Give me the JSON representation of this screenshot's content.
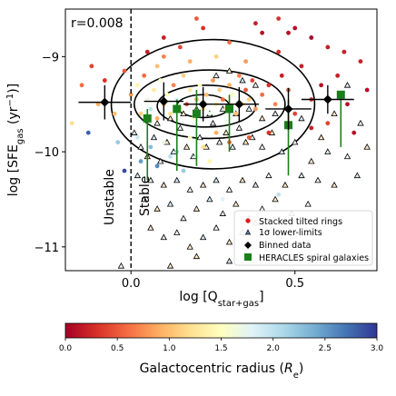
{
  "chart_data": [
    {
      "type": "scatter",
      "annotation": "r=0.008",
      "xlabel": "log [Q",
      "xlabel_sub": "star+gas",
      "xlabel_end": "]",
      "ylabel": "log [SFE",
      "ylabel_sub": "gas",
      "ylabel_mid": " (yr",
      "ylabel_sup": "−1",
      "ylabel_end": ")]",
      "xlim": [
        -0.2,
        0.75
      ],
      "ylim": [
        -11.25,
        -8.5
      ],
      "xticks": [
        {
          "value": 0.0,
          "label": "0.0"
        },
        {
          "value": 0.5,
          "label": "0.5"
        }
      ],
      "yticks": [
        {
          "value": -9,
          "label": "−9"
        },
        {
          "value": -10,
          "label": "−10"
        },
        {
          "value": -11,
          "label": "−11"
        }
      ],
      "divider_x": 0.0,
      "region_labels": {
        "left": "Unstable",
        "right": "Stable"
      },
      "legend": {
        "placement": "lower-right",
        "entries": [
          {
            "marker": "red-dot",
            "label": "Stacked tilted rings"
          },
          {
            "marker": "triangle",
            "label": "1σ lower-limits"
          },
          {
            "marker": "diamond",
            "label": "Binned data"
          },
          {
            "marker": "green-square",
            "label": "HERACLES spiral galaxies"
          }
        ]
      },
      "contours": [
        {
          "cx": 0.25,
          "cy": -9.5,
          "rx": 0.31,
          "ry": 0.68
        },
        {
          "cx": 0.24,
          "cy": -9.5,
          "rx": 0.23,
          "ry": 0.36
        },
        {
          "cx": 0.23,
          "cy": -9.52,
          "rx": 0.15,
          "ry": 0.22
        },
        {
          "cx": 0.22,
          "cy": -9.52,
          "rx": 0.08,
          "ry": 0.12
        }
      ],
      "binned": [
        {
          "x": -0.08,
          "y": -9.48,
          "xerr": 0.08,
          "yerr": 0.18
        },
        {
          "x": 0.1,
          "y": -9.47,
          "xerr": 0.06,
          "yerr": 0.2
        },
        {
          "x": 0.22,
          "y": -9.5,
          "xerr": 0.06,
          "yerr": 0.18
        },
        {
          "x": 0.33,
          "y": -9.5,
          "xerr": 0.06,
          "yerr": 0.18
        },
        {
          "x": 0.48,
          "y": -9.55,
          "xerr": 0.07,
          "yerr": 0.22
        },
        {
          "x": 0.6,
          "y": -9.45,
          "xerr": 0.08,
          "yerr": 0.15
        }
      ],
      "heracles": [
        {
          "x": 0.05,
          "y": -9.65,
          "ylow": -10.3,
          "yhigh": -9.55
        },
        {
          "x": 0.14,
          "y": -9.55,
          "ylow": -10.2,
          "yhigh": -9.45
        },
        {
          "x": 0.2,
          "y": -9.6,
          "ylow": -10.15,
          "yhigh": -9.35
        },
        {
          "x": 0.3,
          "y": -9.55,
          "ylow": -10.0,
          "yhigh": -9.4
        },
        {
          "x": 0.48,
          "y": -9.72,
          "ylow": -10.25,
          "yhigh": -9.45
        },
        {
          "x": 0.64,
          "y": -9.4,
          "ylow": -9.95,
          "yhigh": -9.4
        }
      ],
      "rings": [
        {
          "x": -0.15,
          "y": -9.3,
          "r": 0.6
        },
        {
          "x": -0.12,
          "y": -9.1,
          "r": 0.4
        },
        {
          "x": -0.1,
          "y": -9.5,
          "r": 0.9
        },
        {
          "x": -0.08,
          "y": -9.25,
          "r": 0.3
        },
        {
          "x": -0.05,
          "y": -9.6,
          "r": 1.0
        },
        {
          "x": -0.13,
          "y": -9.8,
          "r": 2.8
        },
        {
          "x": -0.02,
          "y": -9.15,
          "r": 0.5
        },
        {
          "x": -0.18,
          "y": -9.7,
          "r": 1.2
        },
        {
          "x": -0.04,
          "y": -9.9,
          "r": 2.2
        },
        {
          "x": 0.0,
          "y": -9.4,
          "r": 0.8
        },
        {
          "x": 0.02,
          "y": -9.3,
          "r": 1.4
        },
        {
          "x": 0.03,
          "y": -9.6,
          "r": 1.1
        },
        {
          "x": 0.04,
          "y": -9.2,
          "r": 0.6
        },
        {
          "x": 0.05,
          "y": -9.45,
          "r": 1.7
        },
        {
          "x": 0.06,
          "y": -9.55,
          "r": 2.0
        },
        {
          "x": 0.07,
          "y": -9.35,
          "r": 1.3
        },
        {
          "x": 0.08,
          "y": -9.65,
          "r": 0.9
        },
        {
          "x": 0.09,
          "y": -9.25,
          "r": 1.6
        },
        {
          "x": 0.1,
          "y": -9.5,
          "r": 1.0
        },
        {
          "x": 0.11,
          "y": -9.4,
          "r": 1.5
        },
        {
          "x": 0.12,
          "y": -9.6,
          "r": 1.2
        },
        {
          "x": 0.13,
          "y": -9.3,
          "r": 0.7
        },
        {
          "x": 0.14,
          "y": -9.45,
          "r": 1.8
        },
        {
          "x": 0.15,
          "y": -9.55,
          "r": 1.4
        },
        {
          "x": 0.16,
          "y": -9.2,
          "r": 1.1
        },
        {
          "x": 0.17,
          "y": -9.5,
          "r": 0.5
        },
        {
          "x": 0.18,
          "y": -9.35,
          "r": 1.3
        },
        {
          "x": 0.19,
          "y": -9.65,
          "r": 1.6
        },
        {
          "x": 0.2,
          "y": -9.45,
          "r": 0.9
        },
        {
          "x": 0.21,
          "y": -9.3,
          "r": 1.5
        },
        {
          "x": 0.22,
          "y": -9.55,
          "r": 1.2
        },
        {
          "x": 0.23,
          "y": -9.4,
          "r": 1.0
        },
        {
          "x": 0.24,
          "y": -9.6,
          "r": 1.7
        },
        {
          "x": 0.25,
          "y": -9.25,
          "r": 0.8
        },
        {
          "x": 0.26,
          "y": -9.5,
          "r": 1.4
        },
        {
          "x": 0.27,
          "y": -9.35,
          "r": 1.1
        },
        {
          "x": 0.28,
          "y": -9.45,
          "r": 0.6
        },
        {
          "x": 0.29,
          "y": -9.55,
          "r": 1.3
        },
        {
          "x": 0.3,
          "y": -9.3,
          "r": 0.9
        },
        {
          "x": 0.31,
          "y": -9.4,
          "r": 1.5
        },
        {
          "x": 0.32,
          "y": -9.6,
          "r": 1.0
        },
        {
          "x": 0.33,
          "y": -9.2,
          "r": 0.7
        },
        {
          "x": 0.34,
          "y": -9.5,
          "r": 1.2
        },
        {
          "x": 0.35,
          "y": -9.35,
          "r": 0.5
        },
        {
          "x": 0.36,
          "y": -9.45,
          "r": 1.1
        },
        {
          "x": 0.37,
          "y": -9.25,
          "r": 0.4
        },
        {
          "x": 0.38,
          "y": -9.55,
          "r": 0.8
        },
        {
          "x": 0.4,
          "y": -9.4,
          "r": 0.6
        },
        {
          "x": 0.42,
          "y": -9.3,
          "r": 0.3
        },
        {
          "x": 0.44,
          "y": -9.5,
          "r": 0.7
        },
        {
          "x": 0.46,
          "y": -9.2,
          "r": 0.2
        },
        {
          "x": 0.48,
          "y": -9.35,
          "r": 0.5
        },
        {
          "x": 0.5,
          "y": -9.6,
          "r": 0.4
        },
        {
          "x": 0.52,
          "y": -9.1,
          "r": 0.2
        },
        {
          "x": 0.55,
          "y": -9.45,
          "r": 0.3
        },
        {
          "x": 0.58,
          "y": -9.3,
          "r": 0.1
        },
        {
          "x": 0.6,
          "y": -9.7,
          "r": 0.4
        },
        {
          "x": 0.63,
          "y": -9.2,
          "r": 0.2
        },
        {
          "x": 0.66,
          "y": -9.5,
          "r": 0.1
        },
        {
          "x": 0.7,
          "y": -9.05,
          "r": 0.2
        },
        {
          "x": 0.72,
          "y": -9.35,
          "r": 0.1
        },
        {
          "x": 0.5,
          "y": -8.7,
          "r": 0.1
        },
        {
          "x": 0.55,
          "y": -8.8,
          "r": 0.0
        },
        {
          "x": 0.6,
          "y": -8.9,
          "r": 0.2
        },
        {
          "x": 0.45,
          "y": -8.6,
          "r": 0.3
        },
        {
          "x": 0.4,
          "y": -8.75,
          "r": 0.1
        },
        {
          "x": 0.2,
          "y": -8.6,
          "r": 0.5
        },
        {
          "x": 0.22,
          "y": -8.7,
          "r": 0.3
        },
        {
          "x": 0.3,
          "y": -8.85,
          "r": 0.6
        },
        {
          "x": 0.15,
          "y": -8.9,
          "r": 0.4
        },
        {
          "x": 0.1,
          "y": -9.0,
          "r": 0.7
        },
        {
          "x": 0.05,
          "y": -8.95,
          "r": 0.2
        },
        {
          "x": 0.08,
          "y": -9.1,
          "r": 1.0
        },
        {
          "x": 0.18,
          "y": -9.05,
          "r": 0.9
        },
        {
          "x": 0.26,
          "y": -9.0,
          "r": 1.1
        },
        {
          "x": 0.35,
          "y": -9.05,
          "r": 0.8
        },
        {
          "x": 0.45,
          "y": -8.95,
          "r": 0.3
        },
        {
          "x": 0.65,
          "y": -8.95,
          "r": 0.2
        },
        {
          "x": 0.02,
          "y": -9.85,
          "r": 1.9
        },
        {
          "x": 0.06,
          "y": -9.95,
          "r": 2.3
        },
        {
          "x": 0.1,
          "y": -9.9,
          "r": 1.7
        },
        {
          "x": 0.14,
          "y": -10.0,
          "r": 2.1
        },
        {
          "x": 0.18,
          "y": -9.85,
          "r": 1.5
        },
        {
          "x": 0.22,
          "y": -9.95,
          "r": 1.2
        },
        {
          "x": 0.26,
          "y": -9.8,
          "r": 0.9
        },
        {
          "x": 0.3,
          "y": -9.9,
          "r": 0.6
        },
        {
          "x": 0.36,
          "y": -9.85,
          "r": 0.5
        },
        {
          "x": 0.42,
          "y": -9.8,
          "r": 0.3
        },
        {
          "x": 0.55,
          "y": -9.75,
          "r": 0.2
        },
        {
          "x": 0.03,
          "y": -10.1,
          "r": 2.5
        },
        {
          "x": 0.08,
          "y": -10.15,
          "r": 2.6
        },
        {
          "x": 0.12,
          "y": -10.05,
          "r": 2.0
        },
        {
          "x": 0.2,
          "y": -10.05,
          "r": 1.8
        },
        {
          "x": -0.02,
          "y": -10.2,
          "r": 2.9
        },
        {
          "x": 0.16,
          "y": -10.2,
          "r": 2.2
        },
        {
          "x": 0.24,
          "y": -10.1,
          "r": 1.4
        },
        {
          "x": 0.45,
          "y": -10.45,
          "r": 2.0
        },
        {
          "x": 0.28,
          "y": -10.5,
          "r": 1.8
        },
        {
          "x": 0.1,
          "y": -8.8,
          "r": 0.2
        },
        {
          "x": 0.68,
          "y": -9.8,
          "r": 0.1
        },
        {
          "x": 0.38,
          "y": -8.65,
          "r": 0.2
        },
        {
          "x": 0.48,
          "y": -8.75,
          "r": 0.1
        }
      ],
      "limits": [
        {
          "x": 0.01,
          "y": -9.8
        },
        {
          "x": 0.03,
          "y": -9.95
        },
        {
          "x": 0.05,
          "y": -10.05
        },
        {
          "x": 0.07,
          "y": -9.85
        },
        {
          "x": 0.09,
          "y": -10.1
        },
        {
          "x": 0.11,
          "y": -9.9
        },
        {
          "x": 0.13,
          "y": -10.0
        },
        {
          "x": 0.15,
          "y": -9.75
        },
        {
          "x": 0.17,
          "y": -9.95
        },
        {
          "x": 0.19,
          "y": -10.05
        },
        {
          "x": 0.21,
          "y": -9.85
        },
        {
          "x": 0.23,
          "y": -9.95
        },
        {
          "x": 0.25,
          "y": -9.7
        },
        {
          "x": 0.27,
          "y": -9.9
        },
        {
          "x": 0.29,
          "y": -9.8
        },
        {
          "x": 0.31,
          "y": -9.95
        },
        {
          "x": 0.33,
          "y": -9.75
        },
        {
          "x": 0.35,
          "y": -9.9
        },
        {
          "x": 0.37,
          "y": -9.85
        },
        {
          "x": 0.4,
          "y": -9.95
        },
        {
          "x": 0.43,
          "y": -9.8
        },
        {
          "x": 0.46,
          "y": -10.0
        },
        {
          "x": 0.5,
          "y": -9.9
        },
        {
          "x": 0.55,
          "y": -10.1
        },
        {
          "x": 0.6,
          "y": -10.0
        },
        {
          "x": 0.66,
          "y": -10.05
        },
        {
          "x": 0.72,
          "y": -9.95
        },
        {
          "x": 0.02,
          "y": -10.25
        },
        {
          "x": 0.06,
          "y": -10.3
        },
        {
          "x": 0.1,
          "y": -10.35
        },
        {
          "x": 0.14,
          "y": -10.3
        },
        {
          "x": 0.18,
          "y": -10.4
        },
        {
          "x": 0.22,
          "y": -10.35
        },
        {
          "x": 0.26,
          "y": -10.3
        },
        {
          "x": 0.3,
          "y": -10.4
        },
        {
          "x": 0.34,
          "y": -10.3
        },
        {
          "x": 0.38,
          "y": -10.35
        },
        {
          "x": 0.42,
          "y": -10.25
        },
        {
          "x": 0.47,
          "y": -10.35
        },
        {
          "x": 0.52,
          "y": -10.25
        },
        {
          "x": 0.57,
          "y": -10.3
        },
        {
          "x": 0.62,
          "y": -10.35
        },
        {
          "x": 0.69,
          "y": -10.25
        },
        {
          "x": 0.04,
          "y": -10.5
        },
        {
          "x": 0.08,
          "y": -10.6
        },
        {
          "x": 0.12,
          "y": -10.55
        },
        {
          "x": 0.16,
          "y": -10.7
        },
        {
          "x": 0.2,
          "y": -10.6
        },
        {
          "x": 0.24,
          "y": -10.5
        },
        {
          "x": 0.28,
          "y": -10.65
        },
        {
          "x": 0.32,
          "y": -10.55
        },
        {
          "x": 0.36,
          "y": -10.7
        },
        {
          "x": 0.4,
          "y": -10.6
        },
        {
          "x": 0.44,
          "y": -10.5
        },
        {
          "x": 0.49,
          "y": -10.65
        },
        {
          "x": 0.54,
          "y": -10.55
        },
        {
          "x": 0.06,
          "y": -10.8
        },
        {
          "x": 0.1,
          "y": -10.9
        },
        {
          "x": 0.14,
          "y": -10.85
        },
        {
          "x": 0.18,
          "y": -11.0
        },
        {
          "x": 0.22,
          "y": -10.9
        },
        {
          "x": 0.26,
          "y": -10.8
        },
        {
          "x": 0.3,
          "y": -10.95
        },
        {
          "x": 0.34,
          "y": -10.85
        },
        {
          "x": 0.38,
          "y": -10.75
        },
        {
          "x": 0.2,
          "y": -11.1
        },
        {
          "x": 0.3,
          "y": -11.15
        },
        {
          "x": -0.03,
          "y": -11.2
        },
        {
          "x": 0.12,
          "y": -11.2
        },
        {
          "x": 0.24,
          "y": -9.6
        },
        {
          "x": 0.2,
          "y": -9.55
        },
        {
          "x": 0.16,
          "y": -9.6
        },
        {
          "x": 0.28,
          "y": -9.55
        },
        {
          "x": 0.32,
          "y": -9.6
        },
        {
          "x": 0.12,
          "y": -9.65
        },
        {
          "x": 0.36,
          "y": -9.55
        },
        {
          "x": 0.08,
          "y": -9.7
        },
        {
          "x": 0.4,
          "y": -9.65
        },
        {
          "x": 0.44,
          "y": -9.6
        },
        {
          "x": 0.26,
          "y": -9.2
        },
        {
          "x": 0.3,
          "y": -9.15
        },
        {
          "x": 0.34,
          "y": -9.25
        },
        {
          "x": 0.38,
          "y": -9.3
        },
        {
          "x": 0.62,
          "y": -9.6
        },
        {
          "x": 0.66,
          "y": -9.3
        },
        {
          "x": 0.7,
          "y": -9.7
        },
        {
          "x": 0.58,
          "y": -9.85
        },
        {
          "x": 0.52,
          "y": -9.65
        }
      ]
    },
    {
      "type": "colorbar",
      "label": "Galactocentric radius (",
      "label_var": "R",
      "label_sub": "e",
      "label_end": ")",
      "range": [
        0.0,
        3.0
      ],
      "ticks": [
        {
          "value": 0.0,
          "label": "0.0"
        },
        {
          "value": 0.5,
          "label": "0.5"
        },
        {
          "value": 1.0,
          "label": "1.0"
        },
        {
          "value": 1.5,
          "label": "1.5"
        },
        {
          "value": 2.0,
          "label": "2.0"
        },
        {
          "value": 2.5,
          "label": "2.5"
        },
        {
          "value": 3.0,
          "label": "3.0"
        }
      ],
      "colormap": [
        "#a50026",
        "#d73027",
        "#f46d43",
        "#fdae61",
        "#fee090",
        "#ffffbf",
        "#e0f3f8",
        "#abd9e9",
        "#74add1",
        "#4575b4",
        "#313695"
      ]
    }
  ],
  "colors": {
    "binned": "#000000",
    "heracles": "#1a7f1a",
    "limit_edge": "#000000",
    "contour": "#000000"
  }
}
